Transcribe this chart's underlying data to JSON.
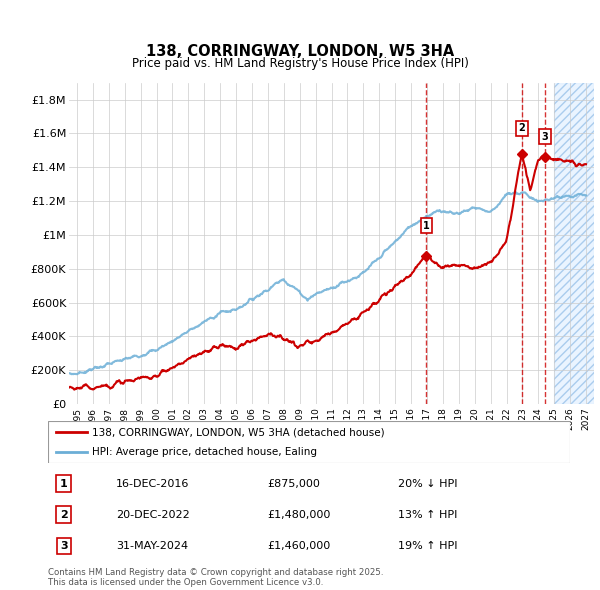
{
  "title": "138, CORRINGWAY, LONDON, W5 3HA",
  "subtitle": "Price paid vs. HM Land Registry's House Price Index (HPI)",
  "ylabel_ticks": [
    "£0",
    "£200K",
    "£400K",
    "£600K",
    "£800K",
    "£1M",
    "£1.2M",
    "£1.4M",
    "£1.6M",
    "£1.8M"
  ],
  "ytick_values": [
    0,
    200000,
    400000,
    600000,
    800000,
    1000000,
    1200000,
    1400000,
    1600000,
    1800000
  ],
  "ylim": [
    0,
    1900000
  ],
  "xlim_start": 1994.5,
  "xlim_end": 2027.5,
  "hpi_color": "#6baed6",
  "price_color": "#CC0000",
  "legend_label_red": "138, CORRINGWAY, LONDON, W5 3HA (detached house)",
  "legend_label_blue": "HPI: Average price, detached house, Ealing",
  "sales": [
    {
      "num": 1,
      "date": "16-DEC-2016",
      "price": 875000,
      "pct": "20%",
      "dir": "↓",
      "x": 2016.96
    },
    {
      "num": 2,
      "date": "20-DEC-2022",
      "price": 1480000,
      "pct": "13%",
      "dir": "↑",
      "x": 2022.96
    },
    {
      "num": 3,
      "date": "31-MAY-2024",
      "price": 1460000,
      "pct": "19%",
      "dir": "↑",
      "x": 2024.42
    }
  ],
  "footer": "Contains HM Land Registry data © Crown copyright and database right 2025.\nThis data is licensed under the Open Government Licence v3.0.",
  "xtick_years": [
    1995,
    1996,
    1997,
    1998,
    1999,
    2000,
    2001,
    2002,
    2003,
    2004,
    2005,
    2006,
    2007,
    2008,
    2009,
    2010,
    2011,
    2012,
    2013,
    2014,
    2015,
    2016,
    2017,
    2018,
    2019,
    2020,
    2021,
    2022,
    2023,
    2024,
    2025,
    2026,
    2027
  ],
  "future_start": 2025.0,
  "noise_seed": 7
}
